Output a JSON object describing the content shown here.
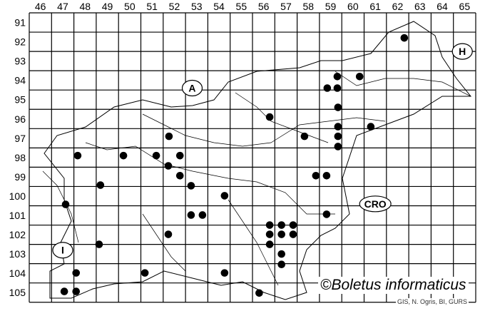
{
  "map": {
    "columns": [
      46,
      47,
      48,
      49,
      50,
      51,
      52,
      53,
      54,
      55,
      56,
      57,
      58,
      59,
      60,
      61,
      62,
      63,
      64,
      65
    ],
    "rows": [
      91,
      92,
      93,
      94,
      95,
      96,
      97,
      98,
      99,
      100,
      101,
      102,
      103,
      104,
      105
    ],
    "regions": [
      {
        "label": "A",
        "x": 52.8,
        "y": 94.4
      },
      {
        "label": "H",
        "x": 64.9,
        "y": 92.5
      },
      {
        "label": "CRO",
        "x": 61.0,
        "y": 100.4
      },
      {
        "label": "I",
        "x": 47.0,
        "y": 102.8
      }
    ],
    "records": [
      {
        "x": 62.3,
        "y": 91.8
      },
      {
        "x": 59.3,
        "y": 93.8
      },
      {
        "x": 60.3,
        "y": 93.8
      },
      {
        "x": 58.85,
        "y": 94.4
      },
      {
        "x": 59.3,
        "y": 94.4
      },
      {
        "x": 59.33,
        "y": 95.4
      },
      {
        "x": 56.27,
        "y": 95.9
      },
      {
        "x": 59.33,
        "y": 96.4
      },
      {
        "x": 60.8,
        "y": 96.4
      },
      {
        "x": 51.76,
        "y": 96.9
      },
      {
        "x": 57.83,
        "y": 96.9
      },
      {
        "x": 59.33,
        "y": 96.9
      },
      {
        "x": 59.33,
        "y": 97.43
      },
      {
        "x": 47.67,
        "y": 97.9
      },
      {
        "x": 49.72,
        "y": 97.9
      },
      {
        "x": 51.19,
        "y": 97.9
      },
      {
        "x": 52.25,
        "y": 97.9
      },
      {
        "x": 51.73,
        "y": 98.43
      },
      {
        "x": 52.25,
        "y": 98.94
      },
      {
        "x": 58.34,
        "y": 98.94
      },
      {
        "x": 58.82,
        "y": 98.94
      },
      {
        "x": 48.69,
        "y": 99.43
      },
      {
        "x": 52.75,
        "y": 99.46
      },
      {
        "x": 54.25,
        "y": 99.98
      },
      {
        "x": 47.13,
        "y": 100.43
      },
      {
        "x": 58.82,
        "y": 100.94
      },
      {
        "x": 52.75,
        "y": 100.98
      },
      {
        "x": 53.26,
        "y": 100.98
      },
      {
        "x": 56.27,
        "y": 101.5
      },
      {
        "x": 56.8,
        "y": 101.5
      },
      {
        "x": 57.32,
        "y": 101.5
      },
      {
        "x": 51.73,
        "y": 101.98
      },
      {
        "x": 56.27,
        "y": 101.98
      },
      {
        "x": 56.8,
        "y": 101.98
      },
      {
        "x": 57.32,
        "y": 101.98
      },
      {
        "x": 56.27,
        "y": 102.5
      },
      {
        "x": 48.63,
        "y": 102.5
      },
      {
        "x": 56.8,
        "y": 103.0
      },
      {
        "x": 56.8,
        "y": 103.54
      },
      {
        "x": 47.6,
        "y": 103.98
      },
      {
        "x": 50.68,
        "y": 103.98
      },
      {
        "x": 54.25,
        "y": 103.98
      },
      {
        "x": 47.07,
        "y": 104.94
      },
      {
        "x": 47.6,
        "y": 104.94
      },
      {
        "x": 55.8,
        "y": 105.02
      }
    ]
  },
  "copyright": "©Boletus informaticus",
  "credit": "GIS, N. Ogris, BI, GURS"
}
